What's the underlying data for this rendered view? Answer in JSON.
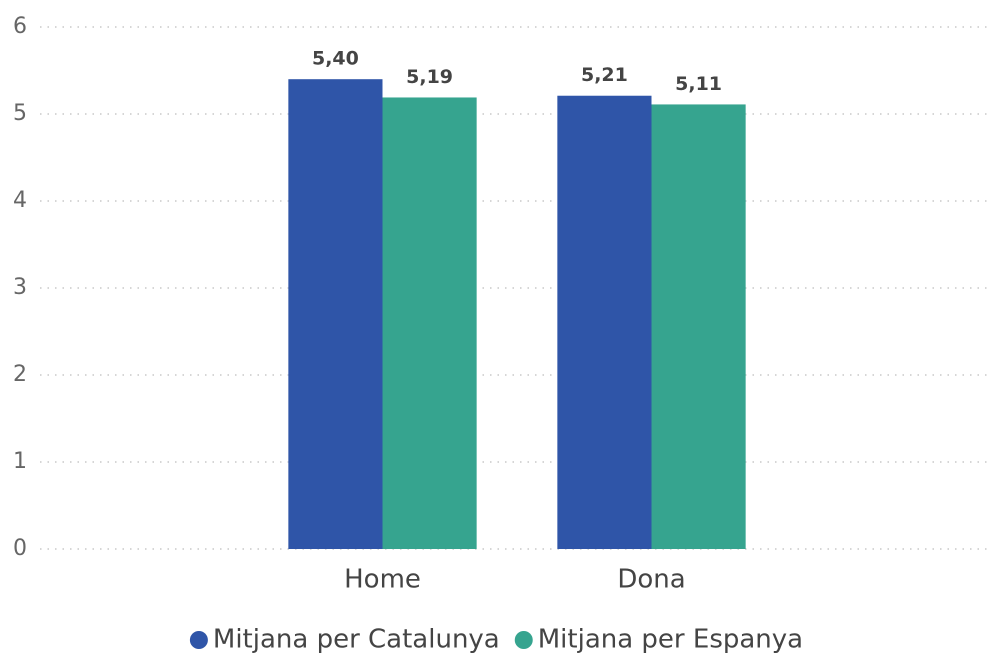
{
  "chart_data": {
    "type": "bar",
    "categories": [
      "Home",
      "Dona"
    ],
    "series": [
      {
        "name": "Mitjana per Catalunya",
        "color": "#2f55a8",
        "values": [
          5.4,
          5.21
        ],
        "value_labels": [
          "5,40",
          "5,21"
        ]
      },
      {
        "name": "Mitjana per Espanya",
        "color": "#36a48f",
        "values": [
          5.19,
          5.11
        ],
        "value_labels": [
          "5,19",
          "5,11"
        ]
      }
    ],
    "ylim": [
      0,
      6
    ],
    "yticks": [
      0,
      1,
      2,
      3,
      4,
      5,
      6
    ],
    "grid": true,
    "legend": "bottom"
  }
}
